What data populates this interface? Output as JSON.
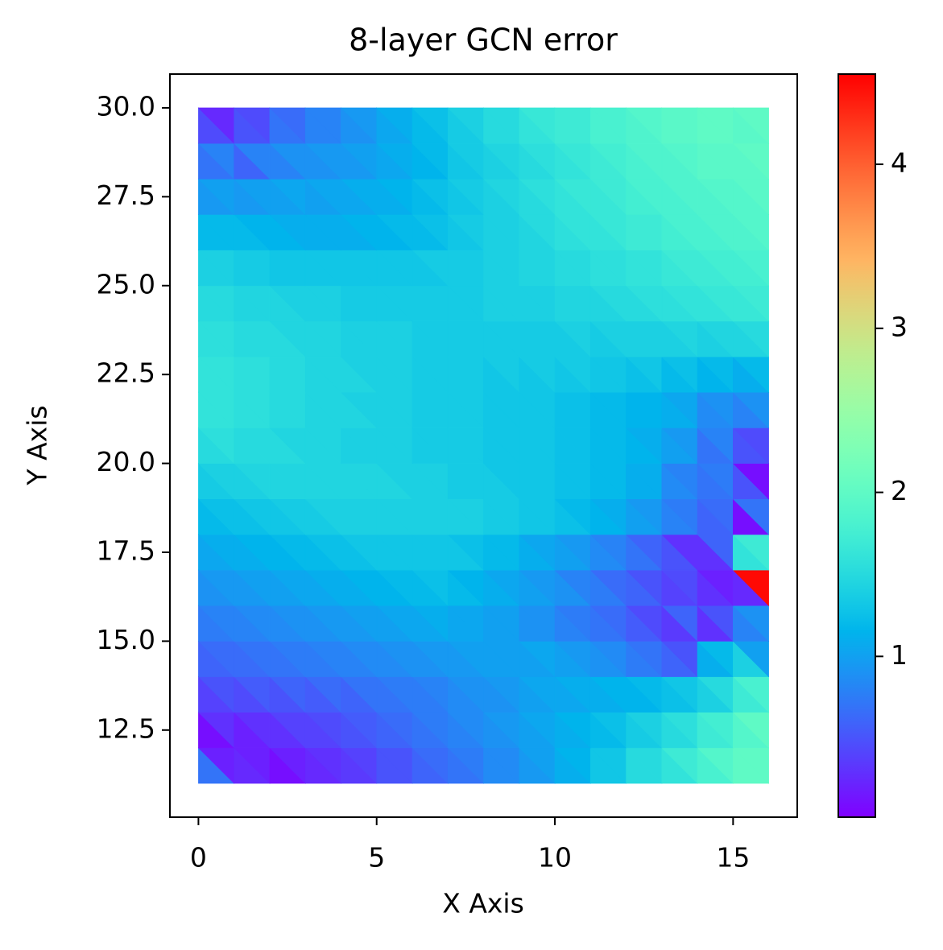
{
  "chart_data": {
    "type": "tripcolor",
    "title": "8-layer GCN error",
    "xlabel": "X Axis",
    "ylabel": "Y Axis",
    "colormap": "rainbow",
    "x": [
      0,
      1,
      2,
      3,
      4,
      5,
      6,
      7,
      8,
      9,
      10,
      11,
      12,
      13,
      14,
      15,
      16
    ],
    "y": [
      11,
      12,
      13,
      14,
      15,
      16,
      17,
      18,
      19,
      20,
      21,
      22,
      23,
      24,
      25,
      26,
      27,
      28,
      29,
      30
    ],
    "values": [
      [
        0.7,
        0.2,
        0.25,
        0.2,
        0.1,
        0.2,
        0.25,
        0.3,
        0.35,
        0.4,
        0.5,
        0.5,
        0.6,
        0.65,
        0.7,
        0.75,
        0.85,
        0.85,
        0.95,
        1.0,
        1.1,
        1.15,
        1.3,
        1.3,
        1.5,
        1.5,
        1.6,
        1.7,
        1.8,
        1.9,
        2.0,
        2.0
      ],
      [
        0.1,
        0.3,
        0.2,
        0.3,
        0.3,
        0.4,
        0.4,
        0.45,
        0.5,
        0.55,
        0.6,
        0.65,
        0.7,
        0.75,
        0.8,
        0.85,
        0.9,
        0.95,
        1.0,
        1.05,
        1.1,
        1.15,
        1.2,
        1.25,
        1.35,
        1.4,
        1.5,
        1.55,
        1.7,
        1.75,
        1.9,
        2.0
      ],
      [
        0.4,
        0.5,
        0.45,
        0.55,
        0.5,
        0.6,
        0.55,
        0.65,
        0.6,
        0.7,
        0.7,
        0.75,
        0.75,
        0.8,
        0.85,
        0.9,
        0.9,
        0.95,
        1.0,
        1.05,
        1.05,
        1.1,
        1.1,
        1.15,
        1.15,
        1.2,
        1.25,
        1.3,
        1.4,
        1.5,
        1.7,
        1.8
      ],
      [
        0.6,
        0.65,
        0.65,
        0.7,
        0.7,
        0.75,
        0.75,
        0.8,
        0.8,
        0.85,
        0.85,
        0.9,
        0.9,
        0.95,
        0.95,
        1.0,
        1.0,
        1.0,
        1.0,
        1.05,
        1.0,
        0.95,
        0.9,
        0.85,
        0.75,
        0.7,
        0.6,
        0.5,
        1.1,
        1.2,
        1.4,
        1.0
      ],
      [
        0.75,
        0.8,
        0.8,
        0.85,
        0.85,
        0.9,
        0.9,
        0.95,
        0.95,
        1.0,
        1.0,
        1.05,
        1.05,
        1.1,
        1.05,
        1.05,
        1.0,
        1.0,
        0.9,
        0.9,
        0.8,
        0.75,
        0.7,
        0.65,
        0.55,
        0.45,
        0.35,
        0.6,
        0.3,
        0.5,
        0.8,
        0.9
      ],
      [
        0.9,
        0.95,
        0.95,
        1.0,
        1.0,
        1.05,
        1.05,
        1.1,
        1.1,
        1.15,
        1.15,
        1.2,
        1.2,
        1.25,
        1.2,
        1.15,
        1.1,
        1.05,
        1.0,
        0.95,
        0.9,
        0.8,
        0.75,
        0.65,
        0.6,
        0.5,
        0.4,
        0.45,
        0.3,
        0.2,
        0.25,
        4.5
      ],
      [
        1.05,
        1.1,
        1.1,
        1.15,
        1.15,
        1.2,
        1.2,
        1.25,
        1.25,
        1.3,
        1.3,
        1.3,
        1.3,
        1.3,
        1.3,
        1.25,
        1.2,
        1.2,
        1.1,
        1.05,
        1.0,
        0.95,
        0.85,
        0.8,
        0.7,
        0.6,
        0.5,
        0.3,
        0.3,
        0.6,
        1.6,
        1.7
      ],
      [
        1.2,
        1.25,
        1.25,
        1.3,
        1.3,
        1.35,
        1.35,
        1.4,
        1.4,
        1.4,
        1.4,
        1.4,
        1.4,
        1.4,
        1.4,
        1.4,
        1.35,
        1.35,
        1.3,
        1.3,
        1.25,
        1.2,
        1.15,
        1.1,
        1.0,
        0.95,
        0.8,
        0.75,
        0.6,
        0.65,
        0.1,
        0.7
      ],
      [
        1.35,
        1.4,
        1.4,
        1.45,
        1.45,
        1.45,
        1.45,
        1.45,
        1.45,
        1.45,
        1.45,
        1.4,
        1.4,
        1.4,
        1.35,
        1.35,
        1.35,
        1.3,
        1.3,
        1.3,
        1.25,
        1.25,
        1.2,
        1.2,
        1.1,
        1.1,
        0.85,
        0.8,
        0.7,
        0.75,
        0.5,
        0.1
      ],
      [
        1.5,
        1.55,
        1.5,
        1.5,
        1.5,
        1.45,
        1.45,
        1.45,
        1.4,
        1.4,
        1.4,
        1.4,
        1.35,
        1.35,
        1.35,
        1.35,
        1.3,
        1.3,
        1.3,
        1.3,
        1.25,
        1.25,
        1.2,
        1.2,
        1.15,
        1.1,
        1.0,
        0.95,
        0.7,
        0.8,
        0.5,
        0.45
      ],
      [
        1.6,
        1.6,
        1.55,
        1.55,
        1.5,
        1.5,
        1.45,
        1.45,
        1.45,
        1.4,
        1.4,
        1.4,
        1.35,
        1.35,
        1.35,
        1.35,
        1.3,
        1.3,
        1.3,
        1.3,
        1.25,
        1.25,
        1.2,
        1.2,
        1.15,
        1.15,
        1.1,
        1.05,
        0.85,
        0.9,
        0.8,
        0.9
      ],
      [
        1.6,
        1.6,
        1.55,
        1.55,
        1.5,
        1.5,
        1.45,
        1.45,
        1.45,
        1.4,
        1.4,
        1.4,
        1.35,
        1.35,
        1.35,
        1.35,
        1.3,
        1.35,
        1.3,
        1.35,
        1.3,
        1.35,
        1.3,
        1.3,
        1.25,
        1.3,
        1.2,
        1.25,
        1.15,
        1.2,
        1.1,
        1.2
      ],
      [
        1.55,
        1.55,
        1.5,
        1.5,
        1.5,
        1.45,
        1.45,
        1.45,
        1.4,
        1.4,
        1.4,
        1.4,
        1.35,
        1.35,
        1.35,
        1.35,
        1.35,
        1.35,
        1.35,
        1.35,
        1.35,
        1.4,
        1.35,
        1.4,
        1.4,
        1.4,
        1.4,
        1.45,
        1.4,
        1.45,
        1.45,
        1.5
      ],
      [
        1.5,
        1.5,
        1.45,
        1.45,
        1.45,
        1.4,
        1.4,
        1.4,
        1.35,
        1.35,
        1.35,
        1.35,
        1.35,
        1.35,
        1.35,
        1.35,
        1.4,
        1.4,
        1.4,
        1.4,
        1.45,
        1.45,
        1.45,
        1.5,
        1.5,
        1.55,
        1.55,
        1.6,
        1.6,
        1.65,
        1.65,
        1.7
      ],
      [
        1.4,
        1.4,
        1.35,
        1.35,
        1.3,
        1.3,
        1.3,
        1.3,
        1.3,
        1.3,
        1.3,
        1.3,
        1.3,
        1.35,
        1.35,
        1.35,
        1.4,
        1.4,
        1.45,
        1.45,
        1.5,
        1.5,
        1.55,
        1.55,
        1.6,
        1.6,
        1.65,
        1.7,
        1.7,
        1.75,
        1.75,
        1.8
      ],
      [
        1.2,
        1.2,
        1.2,
        1.15,
        1.15,
        1.1,
        1.1,
        1.1,
        1.1,
        1.15,
        1.15,
        1.2,
        1.2,
        1.25,
        1.3,
        1.35,
        1.4,
        1.4,
        1.45,
        1.5,
        1.55,
        1.6,
        1.6,
        1.65,
        1.7,
        1.7,
        1.75,
        1.8,
        1.8,
        1.85,
        1.85,
        1.9
      ],
      [
        0.95,
        1.0,
        0.95,
        1.0,
        1.0,
        1.05,
        1.0,
        1.05,
        1.05,
        1.1,
        1.1,
        1.15,
        1.2,
        1.25,
        1.3,
        1.35,
        1.4,
        1.45,
        1.5,
        1.55,
        1.6,
        1.65,
        1.65,
        1.7,
        1.75,
        1.8,
        1.8,
        1.85,
        1.85,
        1.9,
        1.9,
        1.95
      ],
      [
        0.7,
        0.8,
        0.6,
        0.8,
        0.8,
        0.9,
        0.9,
        0.95,
        0.95,
        1.0,
        1.05,
        1.1,
        1.15,
        1.2,
        1.3,
        1.35,
        1.4,
        1.45,
        1.5,
        1.55,
        1.6,
        1.65,
        1.7,
        1.75,
        1.8,
        1.85,
        1.85,
        1.9,
        1.95,
        1.95,
        1.95,
        2.0
      ],
      [
        0.45,
        0.25,
        0.5,
        0.45,
        0.7,
        0.65,
        0.8,
        0.8,
        0.9,
        0.95,
        1.05,
        1.1,
        1.2,
        1.25,
        1.35,
        1.4,
        1.5,
        1.5,
        1.6,
        1.65,
        1.7,
        1.7,
        1.8,
        1.8,
        1.85,
        1.9,
        1.95,
        1.95,
        2.0,
        2.0,
        1.95,
        2.0
      ]
    ],
    "xlim": [
      -0.8,
      16.8
    ],
    "xticks": [
      0,
      5,
      10,
      15
    ],
    "ylim": [
      10.05,
      30.95
    ],
    "yticks": [
      {
        "value": 12.5,
        "label": "12.5"
      },
      {
        "value": 15,
        "label": "15.0"
      },
      {
        "value": 17.5,
        "label": "17.5"
      },
      {
        "value": 20,
        "label": "20.0"
      },
      {
        "value": 22.5,
        "label": "22.5"
      },
      {
        "value": 25,
        "label": "25.0"
      },
      {
        "value": 27.5,
        "label": "27.5"
      },
      {
        "value": 30,
        "label": "30.0"
      }
    ],
    "clim": [
      0.02,
      4.55
    ],
    "cticks": [
      1,
      2,
      3,
      4
    ]
  }
}
